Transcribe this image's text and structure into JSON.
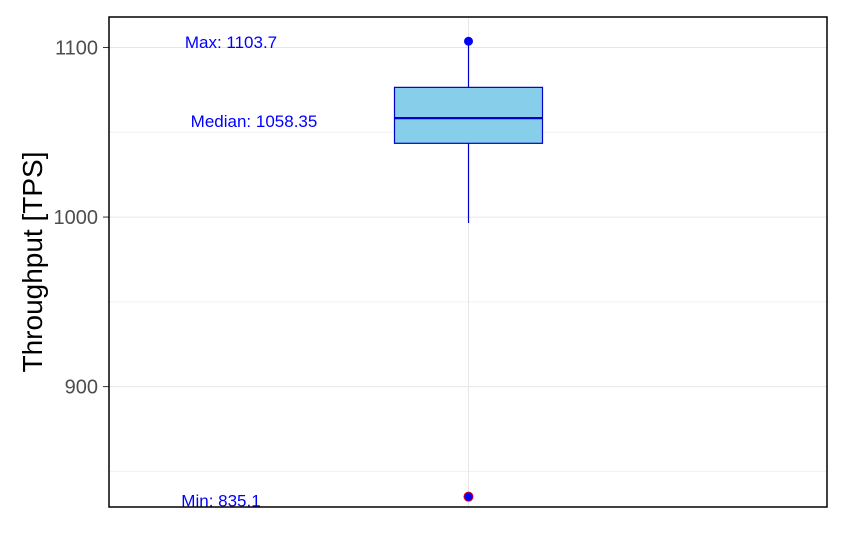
{
  "chart_data": {
    "type": "box",
    "ylabel": "Throughput [TPS]",
    "xlabel": "",
    "ylim": [
      829,
      1118
    ],
    "y_ticks": [
      900,
      1000,
      1100
    ],
    "grid": true,
    "box": {
      "min": 835.1,
      "q1": 1043.5,
      "median": 1058.35,
      "q3": 1076.5,
      "max": 1103.7,
      "whisker_low": 996.5,
      "whisker_high": 1103.7
    },
    "outliers": [
      835.1
    ],
    "annotations": [
      {
        "key": "max",
        "text": "Max: 1103.7",
        "value": 1103.7
      },
      {
        "key": "median",
        "text": "Median: 1058.35",
        "value": 1058.35
      },
      {
        "key": "min",
        "text": "Min: 835.1",
        "value": 835.1
      }
    ],
    "colors": {
      "box_fill": "#87CEEB",
      "box_stroke": "#0000CD",
      "annotation": "#0000FF",
      "point": "#0000FF",
      "point_ring": "#FF0000"
    }
  }
}
